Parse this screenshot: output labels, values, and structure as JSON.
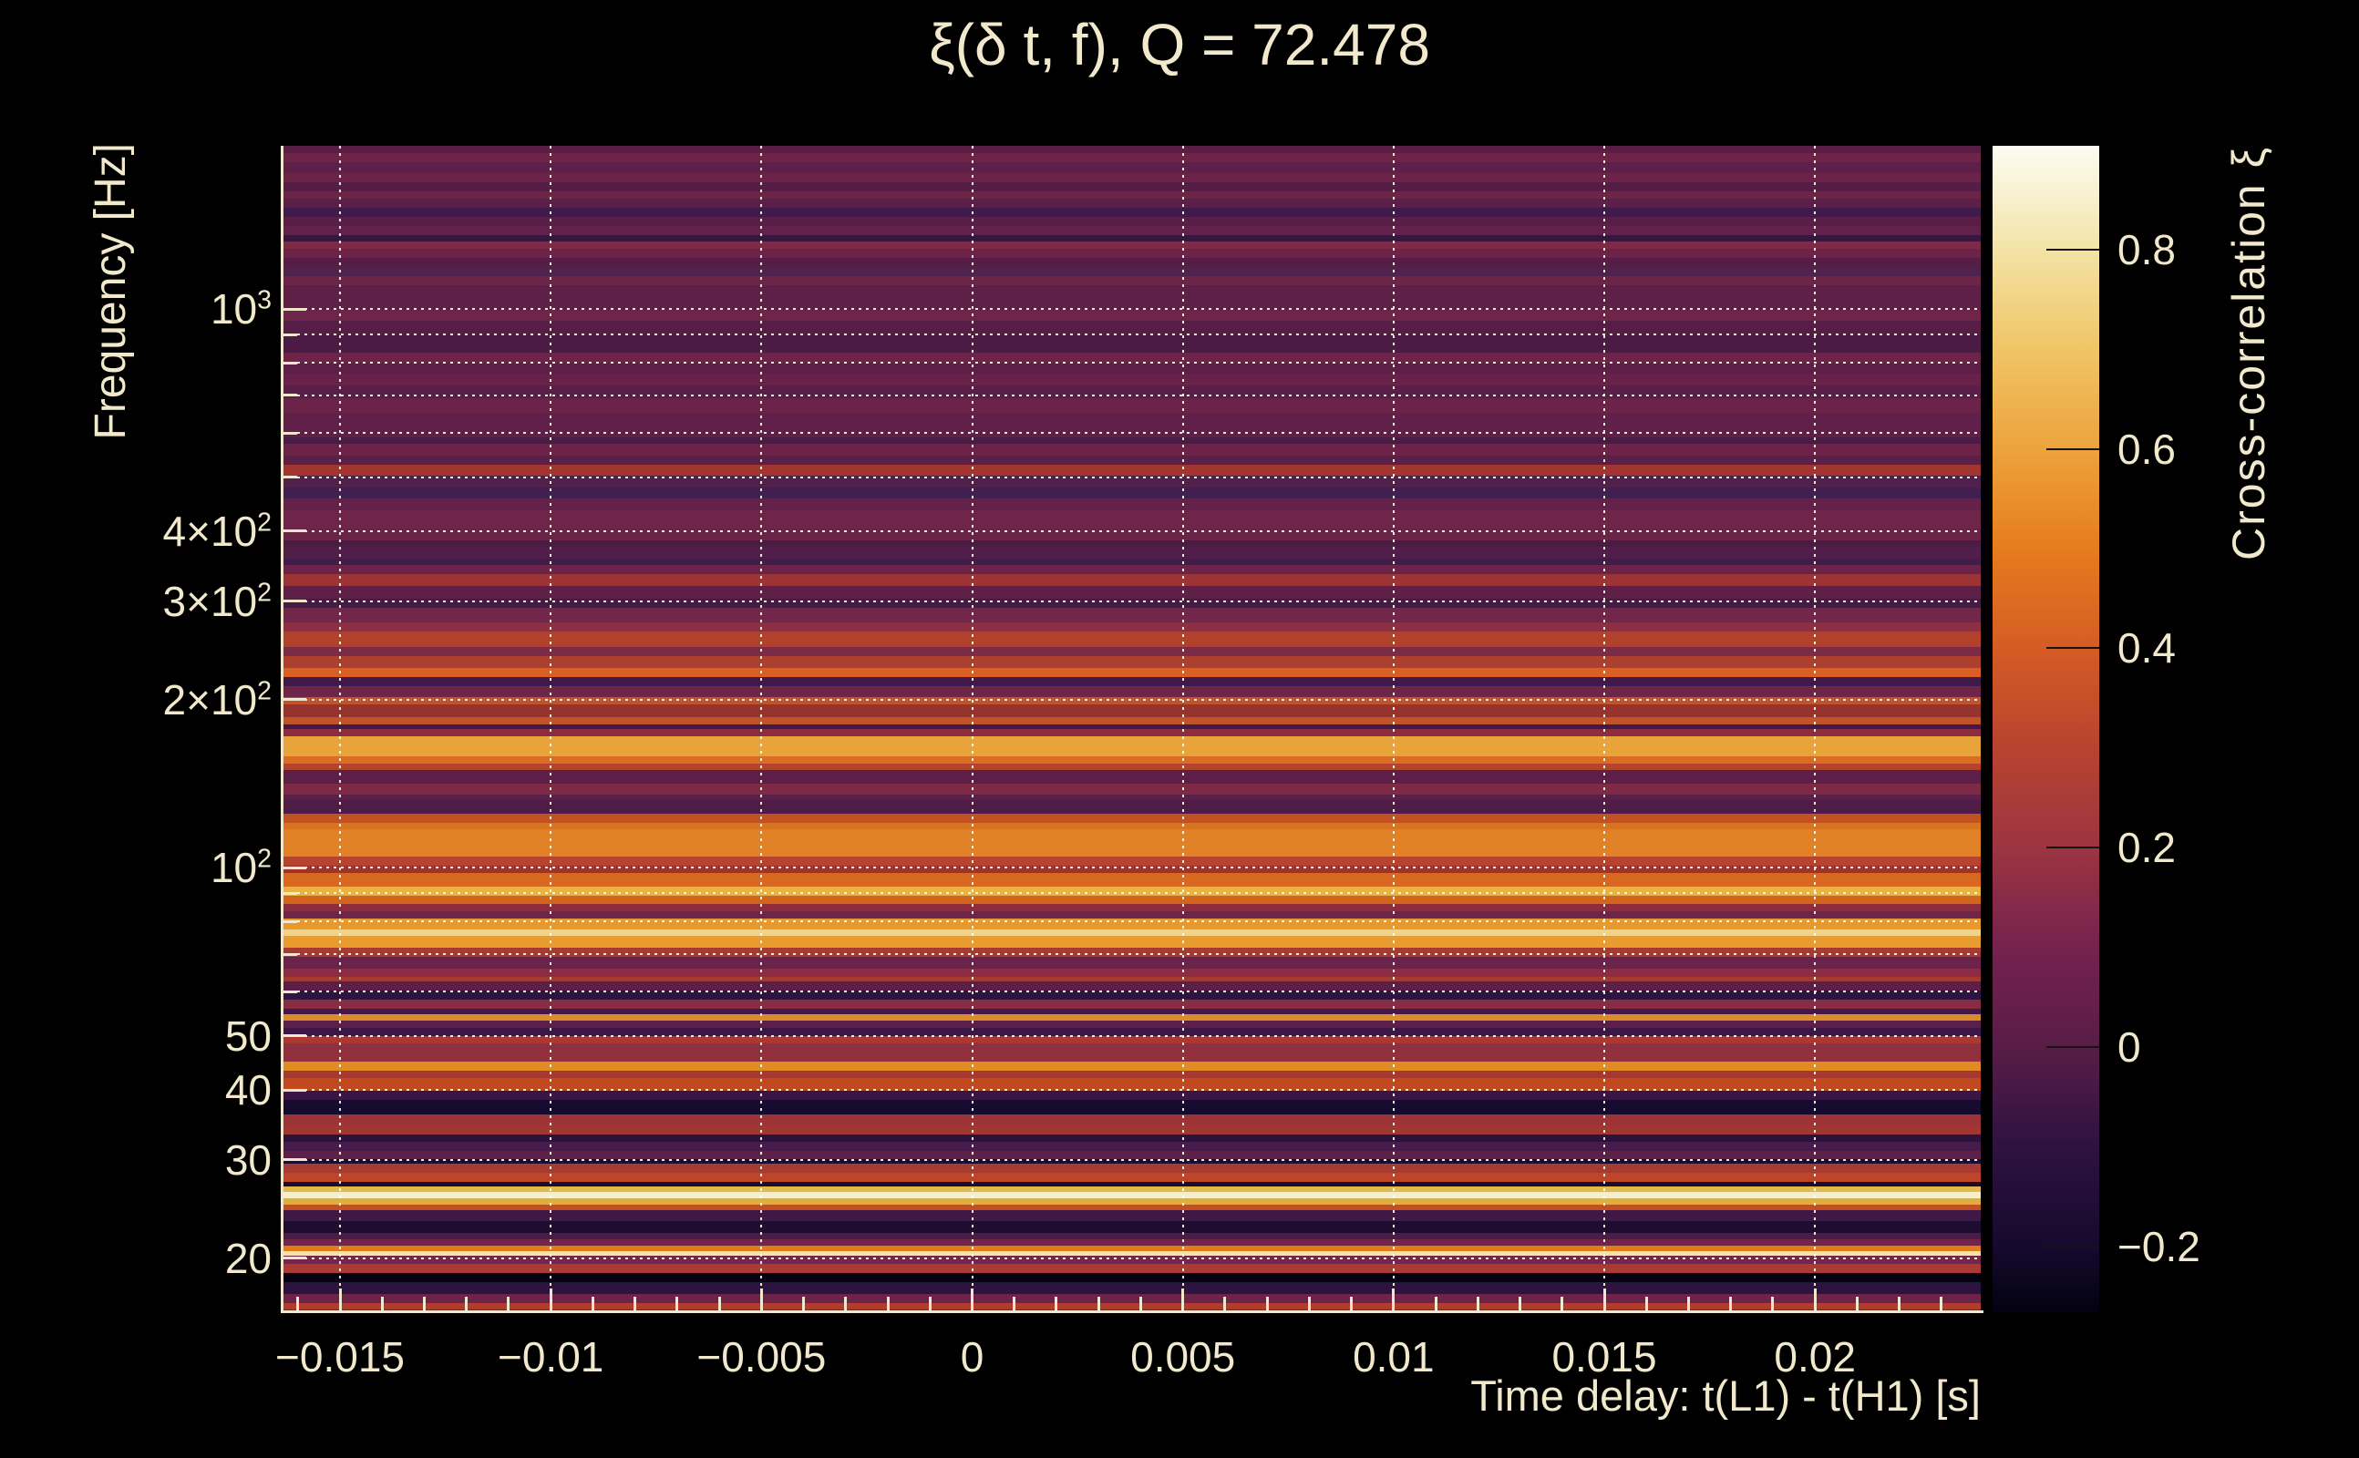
{
  "colors": {
    "background": "#000000",
    "text": "#f2e9cd",
    "axis": "#f0e7cd",
    "grid": "rgba(255,250,235,0.92)",
    "colorbar_tick": "#141414"
  },
  "chart_data": {
    "type": "heatmap",
    "title": "ξ(δ t, f), Q = 72.478",
    "q_factor": 72.478,
    "xlabel": "Time delay: t(L1) - t(H1) [s]",
    "ylabel": "Frequency [Hz]",
    "x_range": [
      -0.016363,
      0.023933
    ],
    "x_major_ticks": [
      -0.015,
      -0.01,
      -0.005,
      0,
      0.005,
      0.01,
      0.015,
      0.02
    ],
    "x_tick_labels": [
      "−0.015",
      "−0.01",
      "−0.005",
      "0",
      "0.005",
      "0.01",
      "0.015",
      "0.02"
    ],
    "x_minor_step": 0.001,
    "y_scale": "log",
    "y_range_hz": [
      16.0,
      1959
    ],
    "y_ticks": [
      {
        "f": 1000,
        "pre": "10",
        "sup": "3"
      },
      {
        "f": 400,
        "pre": "4×10",
        "sup": "2"
      },
      {
        "f": 300,
        "pre": "3×10",
        "sup": "2"
      },
      {
        "f": 200,
        "pre": "2×10",
        "sup": "2"
      },
      {
        "f": 100,
        "pre": "10",
        "sup": "2"
      },
      {
        "f": 50,
        "pre": "50",
        "sup": ""
      },
      {
        "f": 40,
        "pre": "40",
        "sup": ""
      },
      {
        "f": 30,
        "pre": "30",
        "sup": ""
      },
      {
        "f": 20,
        "pre": "20",
        "sup": ""
      }
    ],
    "y_minor_ticks_hz": [
      900,
      800,
      700,
      600,
      500,
      90,
      80,
      70,
      60
    ],
    "y_grid_hz": [
      1000,
      900,
      800,
      700,
      600,
      500,
      400,
      300,
      200,
      100,
      90,
      80,
      70,
      60,
      50,
      40,
      30,
      20
    ],
    "grid_style": "dotted",
    "colorbar": {
      "label": "Cross-correlation ξ",
      "range": [
        -0.266,
        0.904
      ],
      "ticks": [
        {
          "v": 0.8,
          "label": "0.8"
        },
        {
          "v": 0.6,
          "label": "0.6"
        },
        {
          "v": 0.4,
          "label": "0.4"
        },
        {
          "v": 0.2,
          "label": "0.2"
        },
        {
          "v": 0,
          "label": "0"
        },
        {
          "v": -0.2,
          "label": "−0.2"
        }
      ],
      "gradient": [
        {
          "pct": 0,
          "color": "#030210"
        },
        {
          "pct": 5.6,
          "color": "#16092e"
        },
        {
          "pct": 14.2,
          "color": "#2e1241"
        },
        {
          "pct": 22.7,
          "color": "#581d47"
        },
        {
          "pct": 31.3,
          "color": "#75224f"
        },
        {
          "pct": 39.8,
          "color": "#9c3441"
        },
        {
          "pct": 48.4,
          "color": "#b8432f"
        },
        {
          "pct": 56.9,
          "color": "#d55c24"
        },
        {
          "pct": 65.5,
          "color": "#e67c1d"
        },
        {
          "pct": 74,
          "color": "#eda33c"
        },
        {
          "pct": 82.6,
          "color": "#f0c566"
        },
        {
          "pct": 91.1,
          "color": "#f3e3a6"
        },
        {
          "pct": 100,
          "color": "#fdfcf3"
        }
      ]
    },
    "bands_format": [
      "y_px_top",
      "color",
      "xi_estimate",
      "freq_hz"
    ],
    "bands": [
      [
        160,
        "#5a1e46",
        0.05,
        1948
      ],
      [
        168,
        "#6e2449",
        0.09,
        1890
      ],
      [
        178,
        "#5e2048",
        0.06,
        1820
      ],
      [
        190,
        "#6b2348",
        0.09,
        1741
      ],
      [
        200,
        "#541d45",
        0.03,
        1677
      ],
      [
        210,
        "#6d2449",
        0.09,
        1615
      ],
      [
        218,
        "#5c1f47",
        0.05,
        1567
      ],
      [
        228,
        "#3f1a4c",
        -0.03,
        1510
      ],
      [
        238,
        "#5a1e46",
        0.05,
        1454
      ],
      [
        248,
        "#62214a",
        0.07,
        1401
      ],
      [
        258,
        "#39163f",
        -0.05,
        1349
      ],
      [
        265,
        "#7e2946",
        0.13,
        1314
      ],
      [
        273,
        "#6b2348",
        0.09,
        1276
      ],
      [
        283,
        "#561e46",
        0.04,
        1229
      ],
      [
        293,
        "#50224e",
        0.02,
        1184
      ],
      [
        303,
        "#6d2449",
        0.09,
        1140
      ],
      [
        313,
        "#5e2047",
        0.06,
        1098
      ],
      [
        340,
        "#6f2449",
        0.1,
        992
      ],
      [
        352,
        "#561e46",
        0.04,
        949
      ],
      [
        367,
        "#4c1b45",
        0.01,
        897
      ],
      [
        387,
        "#6e2449",
        0.09,
        832
      ],
      [
        398,
        "#5c1f47",
        0.05,
        799
      ],
      [
        410,
        "#682249",
        0.08,
        764
      ],
      [
        423,
        "#5a1f48",
        0.05,
        727
      ],
      [
        437,
        "#6c2349",
        0.09,
        690
      ],
      [
        453,
        "#61204a",
        0.07,
        650
      ],
      [
        473,
        "#5e2047",
        0.06,
        603
      ],
      [
        480,
        "#4a1b44",
        0.0,
        587
      ],
      [
        487,
        "#6d2348",
        0.09,
        572
      ],
      [
        500,
        "#5a2047",
        0.05,
        545
      ],
      [
        510,
        "#a33531",
        0.3,
        525
      ],
      [
        522,
        "#52204c",
        0.02,
        502
      ],
      [
        535,
        "#3f2050",
        -0.03,
        478
      ],
      [
        547,
        "#64224b",
        0.07,
        457
      ],
      [
        560,
        "#6e2549",
        0.09,
        435
      ],
      [
        580,
        "#6b2348",
        0.09,
        404
      ],
      [
        593,
        "#491c45",
        0.0,
        385
      ],
      [
        600,
        "#511d49",
        0.02,
        375
      ],
      [
        613,
        "#3e1c4c",
        -0.03,
        357
      ],
      [
        620,
        "#6b2349",
        0.09,
        348
      ],
      [
        630,
        "#9c3336",
        0.27,
        335
      ],
      [
        643,
        "#5e2048",
        0.06,
        319
      ],
      [
        657,
        "#451a44",
        -0.01,
        303
      ],
      [
        667,
        "#72264a",
        0.1,
        292
      ],
      [
        683,
        "#8e2e41",
        0.21,
        275
      ],
      [
        693,
        "#b2412c",
        0.35,
        265
      ],
      [
        710,
        "#7c2a45",
        0.13,
        248
      ],
      [
        720,
        "#ad3f2f",
        0.33,
        239
      ],
      [
        733,
        "#d95f23",
        0.5,
        228
      ],
      [
        743,
        "#3f1a49",
        -0.03,
        220
      ],
      [
        753,
        "#6f2549",
        0.1,
        211
      ],
      [
        765,
        "#c2532a",
        0.41,
        202
      ],
      [
        773,
        "#97332f",
        0.25,
        196
      ],
      [
        787,
        "#c05328",
        0.41,
        186
      ],
      [
        795,
        "#42194a",
        -0.02,
        181
      ],
      [
        800,
        "#8e2d3f",
        0.21,
        177
      ],
      [
        808,
        "#e8a33b",
        0.63,
        172
      ],
      [
        830,
        "#d96e22",
        0.52,
        158
      ],
      [
        838,
        "#b4452c",
        0.36,
        154
      ],
      [
        845,
        "#5c2048",
        0.05,
        150
      ],
      [
        860,
        "#7e2946",
        0.13,
        142
      ],
      [
        872,
        "#5c1f48",
        0.05,
        135
      ],
      [
        878,
        "#4e1c46",
        0.01,
        132
      ],
      [
        893,
        "#c2521f",
        0.41,
        125
      ],
      [
        903,
        "#d8741f",
        0.53,
        121
      ],
      [
        910,
        "#e08126",
        0.57,
        117
      ],
      [
        940,
        "#b8432d",
        0.37,
        105
      ],
      [
        950,
        "#a3322f",
        0.3,
        101
      ],
      [
        958,
        "#d8671f",
        0.51,
        98
      ],
      [
        973,
        "#eab23f",
        0.66,
        93
      ],
      [
        983,
        "#d2641f",
        0.49,
        89
      ],
      [
        992,
        "#8e2c3d",
        0.21,
        86
      ],
      [
        1000,
        "#6f2449",
        0.1,
        84
      ],
      [
        1008,
        "#e9982c",
        0.62,
        81
      ],
      [
        1020,
        "#f2d289",
        0.78,
        78
      ],
      [
        1027,
        "#e99b2e",
        0.62,
        76
      ],
      [
        1040,
        "#a83b31",
        0.32,
        72
      ],
      [
        1050,
        "#6c2349",
        0.09,
        70
      ],
      [
        1063,
        "#8c2b42",
        0.2,
        66
      ],
      [
        1072,
        "#a23933",
        0.29,
        64
      ],
      [
        1077,
        "#5c1f4a",
        0.05,
        63
      ],
      [
        1087,
        "#2e1440",
        -0.1,
        61
      ],
      [
        1097,
        "#872c42",
        0.18,
        58
      ],
      [
        1107,
        "#44194a",
        -0.01,
        56
      ],
      [
        1113,
        "#db8c2a",
        0.57,
        55
      ],
      [
        1120,
        "#5c1f4a",
        0.05,
        53.5
      ],
      [
        1128,
        "#3c1748",
        -0.04,
        52
      ],
      [
        1137,
        "#aa3a31",
        0.32,
        50
      ],
      [
        1145,
        "#8e3040",
        0.21,
        49
      ],
      [
        1155,
        "#92303c",
        0.23,
        47
      ],
      [
        1165,
        "#e08c22",
        0.58,
        45
      ],
      [
        1175,
        "#a5392f",
        0.31,
        44
      ],
      [
        1183,
        "#c2481f",
        0.4,
        42
      ],
      [
        1197,
        "#3a1647",
        -0.04,
        40
      ],
      [
        1207,
        "#140b2e",
        -0.19,
        39
      ],
      [
        1223,
        "#9c3437",
        0.26,
        36
      ],
      [
        1235,
        "#a13733",
        0.29,
        35
      ],
      [
        1245,
        "#2c123d",
        -0.11,
        33.5
      ],
      [
        1253,
        "#471b4b",
        0.0,
        32.5
      ],
      [
        1263,
        "#5e2048",
        0.06,
        31
      ],
      [
        1272,
        "#1c0c30",
        -0.16,
        30
      ],
      [
        1277,
        "#a53b32",
        0.31,
        29.7
      ],
      [
        1287,
        "#bf4529",
        0.39,
        28.6
      ],
      [
        1297,
        "#1a0c2f",
        -0.16,
        27.6
      ],
      [
        1302,
        "#e3b94d",
        0.69,
        27
      ],
      [
        1308,
        "#f6efc9",
        0.88,
        26.5
      ],
      [
        1315,
        "#dfaf3e",
        0.66,
        25.8
      ],
      [
        1322,
        "#c04f22",
        0.41,
        25
      ],
      [
        1328,
        "#3f1848",
        -0.03,
        24.6
      ],
      [
        1340,
        "#1e0d31",
        -0.15,
        23.5
      ],
      [
        1353,
        "#4c1c49",
        0.01,
        22.4
      ],
      [
        1360,
        "#702549",
        0.1,
        21.8
      ],
      [
        1367,
        "#df7d16",
        0.55,
        21.2
      ],
      [
        1373,
        "#f3e3ab",
        0.85,
        20.8
      ],
      [
        1378,
        "#75264a",
        0.11,
        20.4
      ],
      [
        1387,
        "#aa3a34",
        0.32,
        19.7
      ],
      [
        1397,
        "#050214",
        -0.26,
        19
      ],
      [
        1407,
        "#2d1340",
        -0.1,
        18.3
      ],
      [
        1420,
        "#6e2449",
        0.09,
        17.4
      ],
      [
        1430,
        "#b03c2e",
        0.34,
        16.8
      ],
      [
        1437,
        "#6e2449",
        0.09,
        16.3
      ]
    ]
  }
}
